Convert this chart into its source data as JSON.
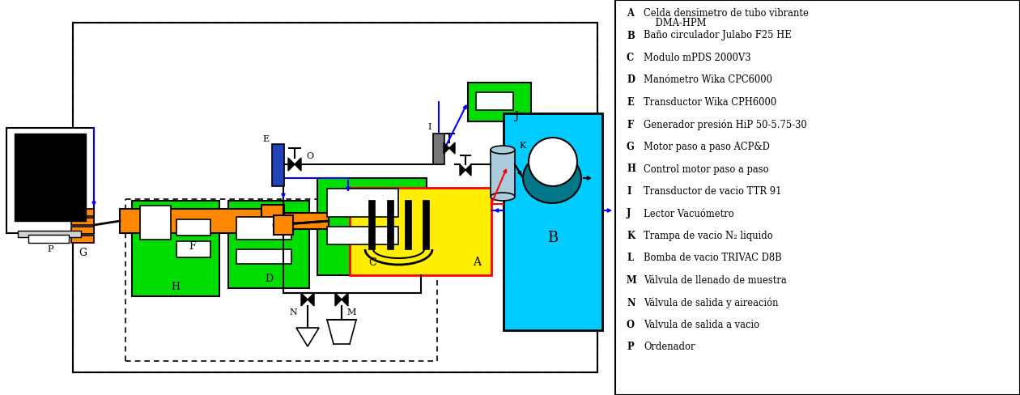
{
  "legend_entries": [
    [
      "A",
      "Celda densimetro de tubo vibrante\n    DMA-HPM"
    ],
    [
      "B",
      "Baño circulador Julabo F25 HE"
    ],
    [
      "C",
      "Modulo mPDS 2000V3"
    ],
    [
      "D",
      "Manómetro Wika CPC6000"
    ],
    [
      "E",
      "Transductor Wika CPH6000"
    ],
    [
      "F",
      "Generador presión HiP 50-5.75-30"
    ],
    [
      "G",
      "Motor paso a paso ACP&D"
    ],
    [
      "H",
      "Control motor paso a paso"
    ],
    [
      "I",
      "Transductor de vacio TTR 91"
    ],
    [
      "J",
      "Lector Vacuómetro"
    ],
    [
      "K",
      "Trampa de vacio N₂ liquido"
    ],
    [
      "L",
      "Bomba de vacio TRIVAC D8B"
    ],
    [
      "M",
      "Válvula de llenado de muestra"
    ],
    [
      "N",
      "Válvula de salida y aireación"
    ],
    [
      "O",
      "Valvula de salida a vacio"
    ],
    [
      "P",
      "Ordenador"
    ]
  ],
  "green": "#00dd00",
  "orange": "#ff8800",
  "yellow": "#ffee00",
  "cyan": "#00ccff",
  "teal": "#007788",
  "blue": "#0000ff",
  "red": "#ff0000",
  "black": "#000000",
  "white": "#ffffff",
  "lightblue": "#aaccdd",
  "darkblue": "#2244bb",
  "bg": "#ffffff"
}
